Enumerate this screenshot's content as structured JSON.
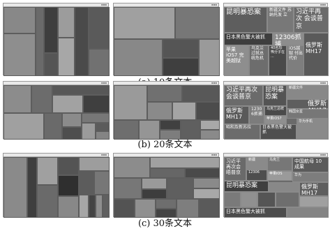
{
  "captions": [
    "(a) 10条文本",
    "(b) 20条文本",
    "(c) 30条文本"
  ],
  "row_a": {
    "labels": {
      "l1": "昆明暴恐案",
      "l2": "新疆文件 苏纳托发 立",
      "l3": "习近平再次 会谈普京",
      "l4": "日本黑色警大被抓",
      "l5": "12306抓捕",
      "l6": "苹果iOS7 完美越狱",
      "l7": "乌克兰 过就总 统危机",
      "l8": "40名恐 怖分子在 ...",
      "l9": "iOS越狱 付出代价",
      "l10": "俄罗斯 MH17"
    }
  },
  "row_b": {
    "labels": {
      "l1": "习近平再次 会谈普京",
      "l2": "昆明暴 恐案",
      "l3": "俄罗斯 MH17",
      "l4": "1230 6抓捕",
      "l5": "乌克兰总统",
      "l6": "新疆文件",
      "l7": "苹果iOS7",
      "l8": "韩国女星",
      "l9": "昭和及新苏拉",
      "l10": "华为手机",
      "l11": "日本黑色警大被抓"
    }
  },
  "row_c": {
    "labels": {
      "l1": "习近平 再次会 晤普京",
      "l2": "昆明暴恐案",
      "l3": "中国航母 10成果",
      "l4": "俄罗斯 MH17",
      "l5": "日本黑色警大被抓",
      "l6": "乌克兰",
      "l7": "苹果iOS",
      "l8": "新疆",
      "l9": "12306",
      "l10": "华为"
    }
  },
  "colors": {
    "panel_bg": "#7b7b7b",
    "dark": "#3c3c3c",
    "mid": "#6f6f6f",
    "light": "#9a9a9a",
    "lighter": "#a9a9a9"
  }
}
